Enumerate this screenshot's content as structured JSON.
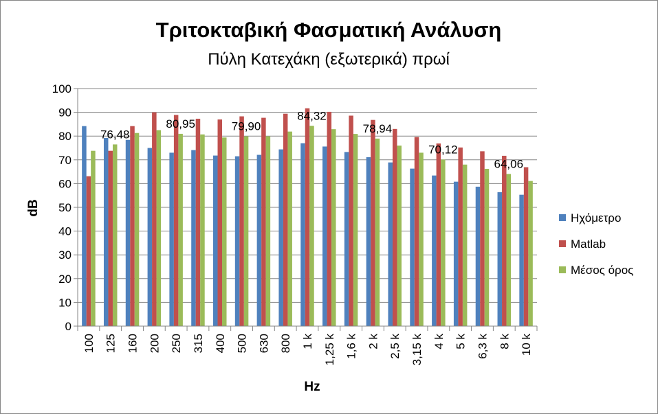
{
  "chart_data": {
    "type": "bar",
    "title": "Τριτοκταβική Φασματική Ανάλυση",
    "subtitle": "Πύλη Κατεχάκη (εξωτερικά) πρωί",
    "xlabel": "Hz",
    "ylabel": "dB",
    "ylim": [
      0,
      100
    ],
    "yticks": [
      "0",
      "10",
      "20",
      "30",
      "40",
      "50",
      "60",
      "70",
      "80",
      "90",
      "100"
    ],
    "grid": true,
    "legend_position": "right",
    "categories": [
      "100",
      "125",
      "160",
      "200",
      "250",
      "315",
      "400",
      "500",
      "630",
      "800",
      "1 k",
      "1,25 k",
      "1,6 k",
      "2 k",
      "2,5 k",
      "3,15 k",
      "4 k",
      "5 k",
      "6,3 k",
      "8 k",
      "10 k"
    ],
    "series": [
      {
        "name": "Ηχόμετρο",
        "color": "#4F81BD",
        "values": [
          84.2,
          79.2,
          78.4,
          75.0,
          73.0,
          74.1,
          71.8,
          71.5,
          72.1,
          74.4,
          77.0,
          75.6,
          73.3,
          71.1,
          68.9,
          66.3,
          63.4,
          60.8,
          58.7,
          56.4,
          55.3
        ]
      },
      {
        "name": "Matlab",
        "color": "#C0504D",
        "values": [
          63.1,
          73.8,
          84.2,
          90.0,
          88.9,
          87.3,
          87.0,
          88.3,
          87.7,
          89.4,
          91.7,
          90.2,
          88.6,
          86.8,
          83.0,
          79.6,
          76.9,
          75.2,
          73.6,
          71.7,
          66.9
        ]
      },
      {
        "name": "Μέσος όρος",
        "color": "#9BBB59",
        "values": [
          73.8,
          76.48,
          81.3,
          82.5,
          80.95,
          80.7,
          79.4,
          79.9,
          79.9,
          81.9,
          84.32,
          82.9,
          80.9,
          78.94,
          76.0,
          73.0,
          70.12,
          68.0,
          66.2,
          64.06,
          61.1
        ]
      }
    ],
    "data_labels": [
      {
        "category": "125",
        "series": "Μέσος όρος",
        "text": "76,48"
      },
      {
        "category": "250",
        "series": "Μέσος όρος",
        "text": "80,95"
      },
      {
        "category": "500",
        "series": "Μέσος όρος",
        "text": "79,90"
      },
      {
        "category": "1 k",
        "series": "Μέσος όρος",
        "text": "84,32"
      },
      {
        "category": "2 k",
        "series": "Μέσος όρος",
        "text": "78,94"
      },
      {
        "category": "4 k",
        "series": "Μέσος όρος",
        "text": "70,12"
      },
      {
        "category": "8 k",
        "series": "Μέσος όρος",
        "text": "64,06"
      }
    ]
  }
}
